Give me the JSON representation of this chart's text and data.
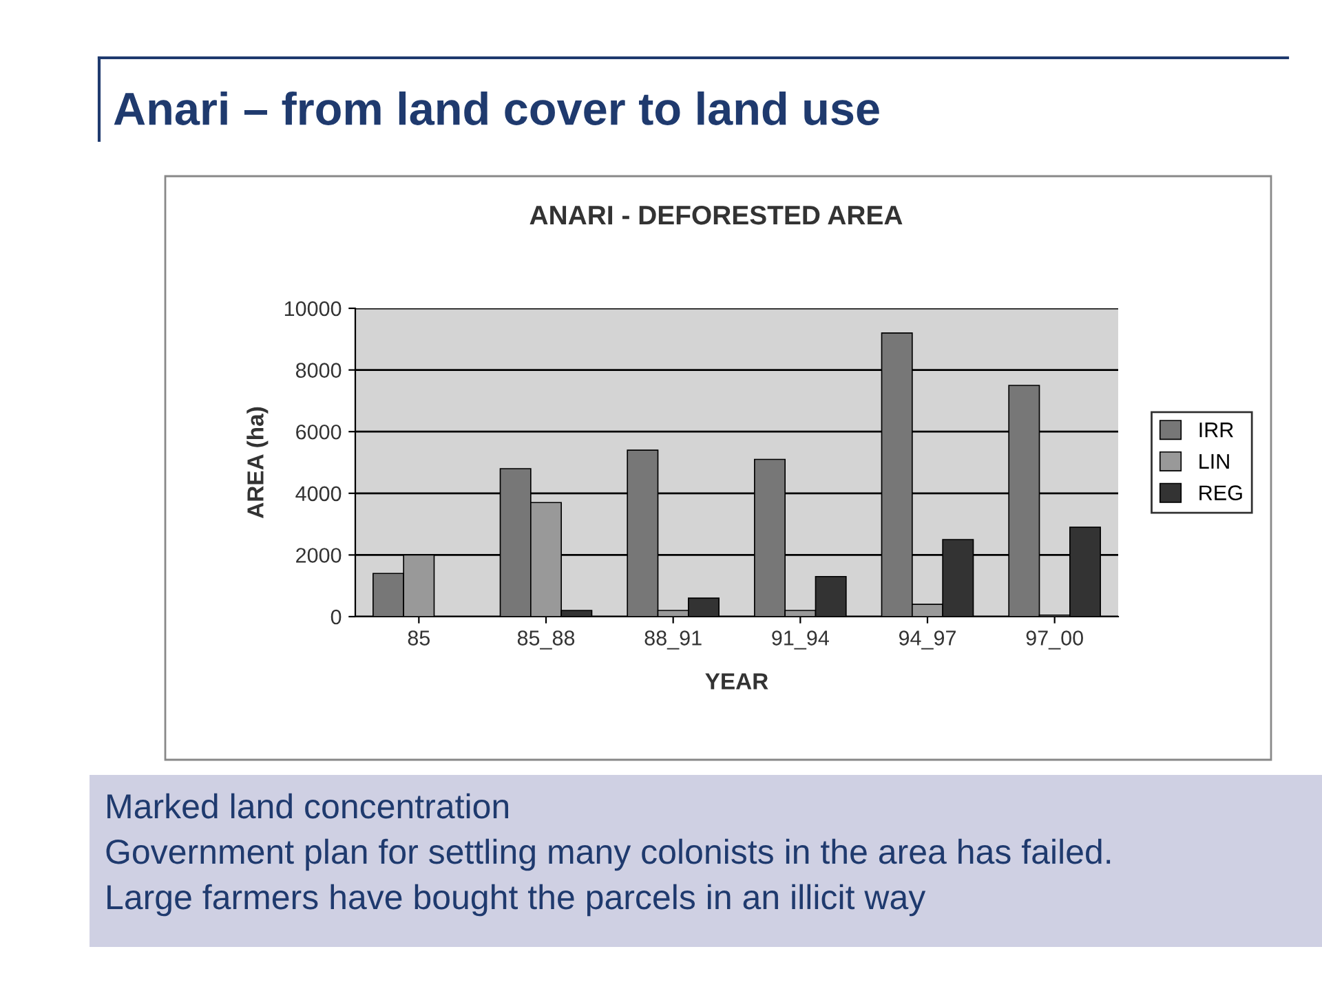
{
  "chart_data": {
    "type": "bar",
    "title": "Anari – from land cover to land use",
    "subtitle": "ANARI - DEFORESTED AREA",
    "xlabel": "YEAR",
    "ylabel": "AREA (ha)",
    "categories": [
      "85",
      "85_88",
      "88_91",
      "91_94",
      "94_97",
      "97_00"
    ],
    "series": [
      {
        "name": "IRR",
        "color": "#777777",
        "values": [
          1400,
          4800,
          5400,
          5100,
          9200,
          7500
        ]
      },
      {
        "name": "LIN",
        "color": "#999999",
        "values": [
          2000,
          3700,
          200,
          200,
          400,
          50
        ]
      },
      {
        "name": "REG",
        "color": "#333333",
        "values": [
          null,
          200,
          600,
          1300,
          2500,
          2900
        ]
      }
    ],
    "ylim": [
      0,
      10000
    ],
    "yticks": [
      0,
      2000,
      4000,
      6000,
      8000,
      10000
    ],
    "grid": "y",
    "legend": "right",
    "annotations": [
      "Marked land concentration",
      "Government plan for settling many colonists in the area has failed.",
      "Large farmers have bought the parcels in an illicit way"
    ]
  }
}
